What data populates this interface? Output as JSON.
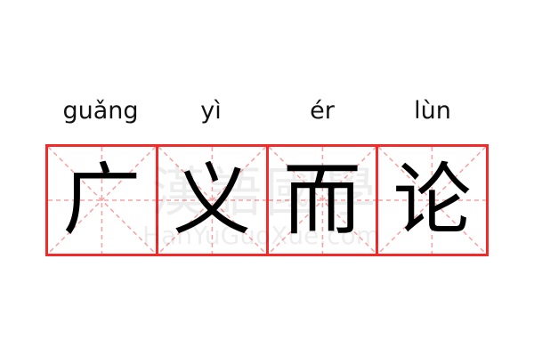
{
  "pinyin": [
    "guǎng",
    "yì",
    "ér",
    "lùn"
  ],
  "characters": [
    "广",
    "义",
    "而",
    "论"
  ],
  "watermark": {
    "chinese": "漢語國學",
    "latin": "HanYuGuoXue.com"
  },
  "colors": {
    "grid_border": "#f32a2a",
    "guide_lines": "#f9a0a0",
    "text": "#000000"
  }
}
